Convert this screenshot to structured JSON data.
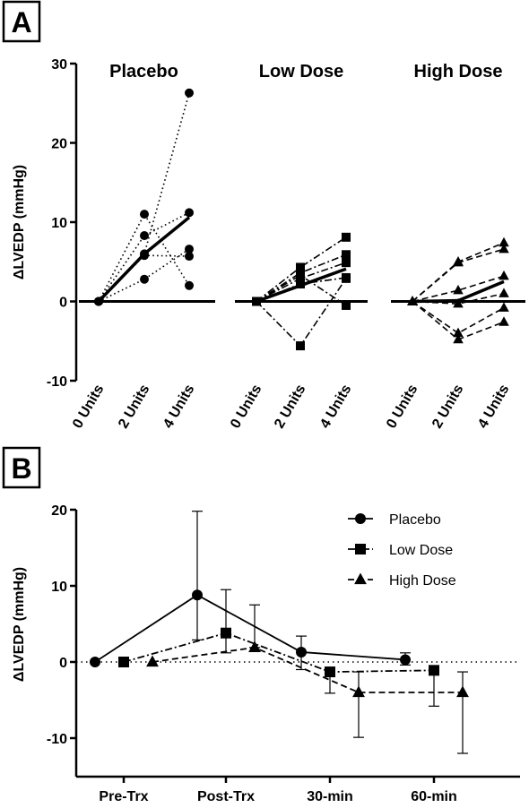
{
  "chart_data": [
    {
      "panel": "A",
      "type": "line",
      "ylabel": "ΔLVEDP (mmHg)",
      "ylim": [
        -10,
        30
      ],
      "yticks": [
        "-10",
        "0",
        "10",
        "20",
        "30"
      ],
      "categories": [
        "0 Units",
        "2 Units",
        "4 Units"
      ],
      "groups": [
        {
          "title": "Placebo",
          "marker": "circle",
          "line_style": "dotted",
          "subjects": [
            [
              0,
              11.0,
              2.0
            ],
            [
              0,
              8.3,
              11.2
            ],
            [
              0,
              6.0,
              26.3
            ],
            [
              0,
              2.8,
              6.6
            ],
            [
              0,
              5.8,
              5.7
            ]
          ],
          "mean": [
            0,
            6.0,
            10.6
          ]
        },
        {
          "title": "Low Dose",
          "marker": "square",
          "line_style": "dash-dot",
          "subjects": [
            [
              0,
              4.3,
              8.1
            ],
            [
              0,
              3.6,
              5.9
            ],
            [
              0,
              2.9,
              4.9
            ],
            [
              0,
              2.2,
              3.0
            ],
            [
              0,
              -5.6,
              2.9
            ],
            [
              0,
              3.3,
              -0.5
            ]
          ],
          "mean": [
            0,
            2.0,
            4.1
          ]
        },
        {
          "title": "High Dose",
          "marker": "triangle",
          "line_style": "dashed",
          "subjects": [
            [
              0,
              5.0,
              7.4
            ],
            [
              0,
              4.9,
              6.6
            ],
            [
              0,
              1.4,
              3.2
            ],
            [
              0,
              -0.3,
              1.0
            ],
            [
              0,
              -4.0,
              -0.8
            ],
            [
              0,
              -4.8,
              -2.6
            ]
          ],
          "mean": [
            0,
            0.1,
            2.5
          ]
        }
      ]
    },
    {
      "panel": "B",
      "type": "line",
      "ylabel": "ΔLVEDP (mmHg)",
      "ylim": [
        -15,
        20
      ],
      "yticks": [
        "-10",
        "0",
        "10",
        "20"
      ],
      "categories": [
        "Pre-Trx",
        "Post-Trx",
        "30-min",
        "60-min"
      ],
      "legend_position": "top-right",
      "reference_line": 0,
      "series": [
        {
          "name": "Placebo",
          "marker": "circle",
          "line_style": "solid",
          "values": [
            0,
            8.8,
            1.3,
            0.3
          ],
          "err_low": [
            0,
            2.9,
            -1.0,
            -0.4
          ],
          "err_high": [
            0,
            19.8,
            3.4,
            1.2
          ]
        },
        {
          "name": "Low Dose",
          "marker": "square",
          "line_style": "dash-dot",
          "values": [
            0,
            3.8,
            -1.3,
            -1.1
          ],
          "err_low": [
            0,
            1.2,
            -4.1,
            -5.8
          ],
          "err_high": [
            0,
            9.5,
            -1.3,
            -1.1
          ]
        },
        {
          "name": "High Dose",
          "marker": "triangle",
          "line_style": "dashed",
          "values": [
            0,
            1.9,
            -4.0,
            -4.0
          ],
          "err_low": [
            0,
            1.9,
            -9.9,
            -12.0
          ],
          "err_high": [
            0,
            7.5,
            -1.3,
            -1.3
          ]
        }
      ]
    }
  ]
}
